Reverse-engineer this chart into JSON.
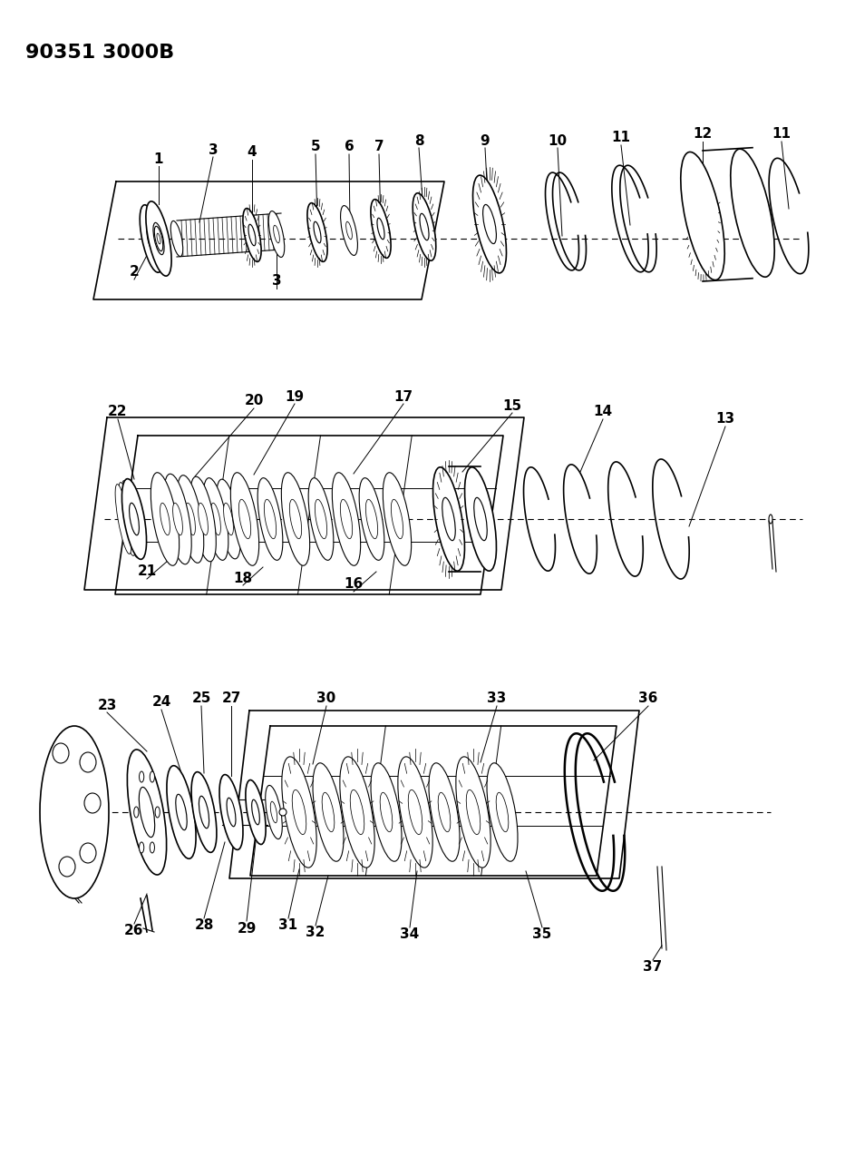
{
  "title": "90351 3000B",
  "bg_color": "#ffffff",
  "line_color": "#000000",
  "title_fontsize": 16,
  "label_fontsize": 11,
  "figsize": [
    9.32,
    12.75
  ],
  "dpi": 100
}
